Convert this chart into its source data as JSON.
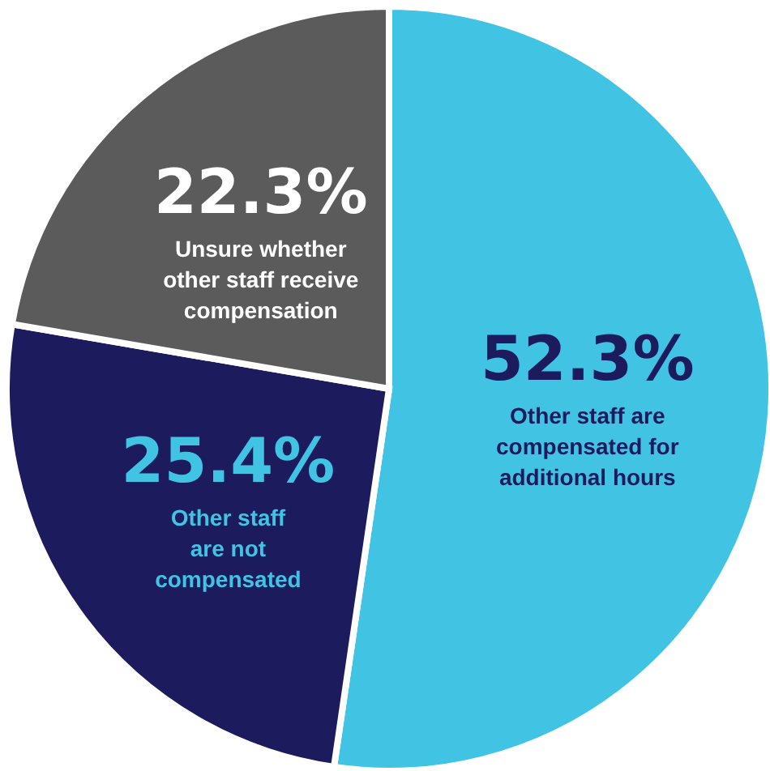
{
  "chart_data": {
    "type": "pie",
    "categories": [
      "Other staff are\ncompensated for\nadditional hours",
      "Other staff\nare not\ncompensated",
      "Unsure whether\nother staff receive\ncompensation"
    ],
    "values": [
      52.3,
      25.4,
      22.3
    ],
    "colors": [
      "#41c3e3",
      "#1b1b5e",
      "#5b5b5b"
    ],
    "value_labels": [
      "52.3%",
      "25.4%",
      "22.3%"
    ]
  }
}
